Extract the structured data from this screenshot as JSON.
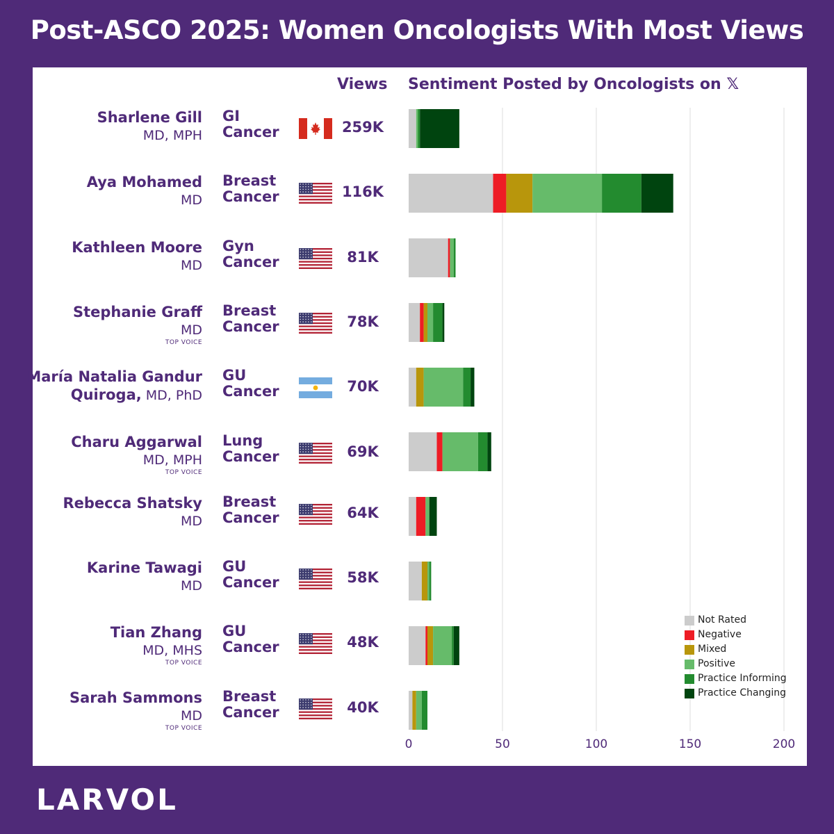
{
  "title": "Post-ASCO 2025: Women Oncologists With Most Views",
  "headers": {
    "views": "Views",
    "sentiment": "Sentiment Posted by Oncologists on",
    "x_logo": "𝕏"
  },
  "brand": "LARVOL",
  "rows": [
    {
      "name": "Sharlene Gill",
      "name2": "",
      "cred": "MD, MPH",
      "badge": "",
      "cancer1": "GI",
      "cancer2": "Cancer",
      "country": "Canada",
      "views": "259K"
    },
    {
      "name": "Aya Mohamed",
      "name2": "",
      "cred": "MD",
      "badge": "",
      "cancer1": "Breast",
      "cancer2": "Cancer",
      "country": "USA",
      "views": "116K"
    },
    {
      "name": "Kathleen Moore",
      "name2": "",
      "cred": "MD",
      "badge": "",
      "cancer1": "Gyn",
      "cancer2": "Cancer",
      "country": "USA",
      "views": "81K"
    },
    {
      "name": "Stephanie Graff",
      "name2": "",
      "cred": "MD",
      "badge": "TOP VOICE",
      "cancer1": "Breast",
      "cancer2": "Cancer",
      "country": "USA",
      "views": "78K"
    },
    {
      "name": "María Natalia Gandur",
      "name2": "Quiroga,",
      "cred": " MD, PhD",
      "badge": "",
      "cancer1": "GU",
      "cancer2": "Cancer",
      "country": "Argentina",
      "views": "70K"
    },
    {
      "name": "Charu Aggarwal",
      "name2": "",
      "cred": "MD, MPH",
      "badge": "TOP VOICE",
      "cancer1": "Lung",
      "cancer2": "Cancer",
      "country": "USA",
      "views": "69K"
    },
    {
      "name": "Rebecca Shatsky",
      "name2": "",
      "cred": "MD",
      "badge": "",
      "cancer1": "Breast",
      "cancer2": "Cancer",
      "country": "USA",
      "views": "64K"
    },
    {
      "name": "Karine Tawagi",
      "name2": "",
      "cred": "MD",
      "badge": "",
      "cancer1": "GU",
      "cancer2": "Cancer",
      "country": "USA",
      "views": "58K"
    },
    {
      "name": "Tian Zhang",
      "name2": "",
      "cred": "MD, MHS",
      "badge": "TOP VOICE",
      "cancer1": "GU",
      "cancer2": "Cancer",
      "country": "USA",
      "views": "48K"
    },
    {
      "name": "Sarah Sammons",
      "name2": "",
      "cred": "MD",
      "badge": "TOP VOICE",
      "cancer1": "Breast",
      "cancer2": "Cancer",
      "country": "USA",
      "views": "40K"
    }
  ],
  "chart_data": {
    "type": "bar",
    "orientation": "horizontal",
    "stacked": true,
    "categories": [
      "Sharlene Gill",
      "Aya Mohamed",
      "Kathleen Moore",
      "Stephanie Graff",
      "María Natalia Gandur Quiroga",
      "Charu Aggarwal",
      "Rebecca Shatsky",
      "Karine Tawagi",
      "Tian Zhang",
      "Sarah Sammons"
    ],
    "series": [
      {
        "name": "Not Rated",
        "color": "#cccccc",
        "values": [
          4,
          45,
          21,
          6,
          4,
          15,
          4,
          7,
          9,
          2
        ]
      },
      {
        "name": "Negative",
        "color": "#ee1c25",
        "values": [
          0,
          7,
          1,
          2,
          0,
          3,
          5,
          0,
          1,
          0
        ]
      },
      {
        "name": "Mixed",
        "color": "#b8960c",
        "values": [
          0,
          14,
          0,
          2,
          4,
          0,
          0,
          3,
          3,
          2
        ]
      },
      {
        "name": "Positive",
        "color": "#66bb6a",
        "values": [
          1,
          37,
          2,
          3,
          21,
          19,
          2,
          1,
          10,
          3
        ]
      },
      {
        "name": "Practice Informing",
        "color": "#238b2f",
        "values": [
          1,
          21,
          1,
          5,
          4,
          5,
          0,
          1,
          1,
          3
        ]
      },
      {
        "name": "Practice Changing",
        "color": "#00440f",
        "values": [
          21,
          17,
          0,
          1,
          2,
          2,
          4,
          0,
          3,
          0
        ]
      }
    ],
    "xlim": [
      0,
      200
    ],
    "xticks": [
      0,
      50,
      100,
      150,
      200
    ],
    "grid": true,
    "legend_position": "bottom-right"
  }
}
